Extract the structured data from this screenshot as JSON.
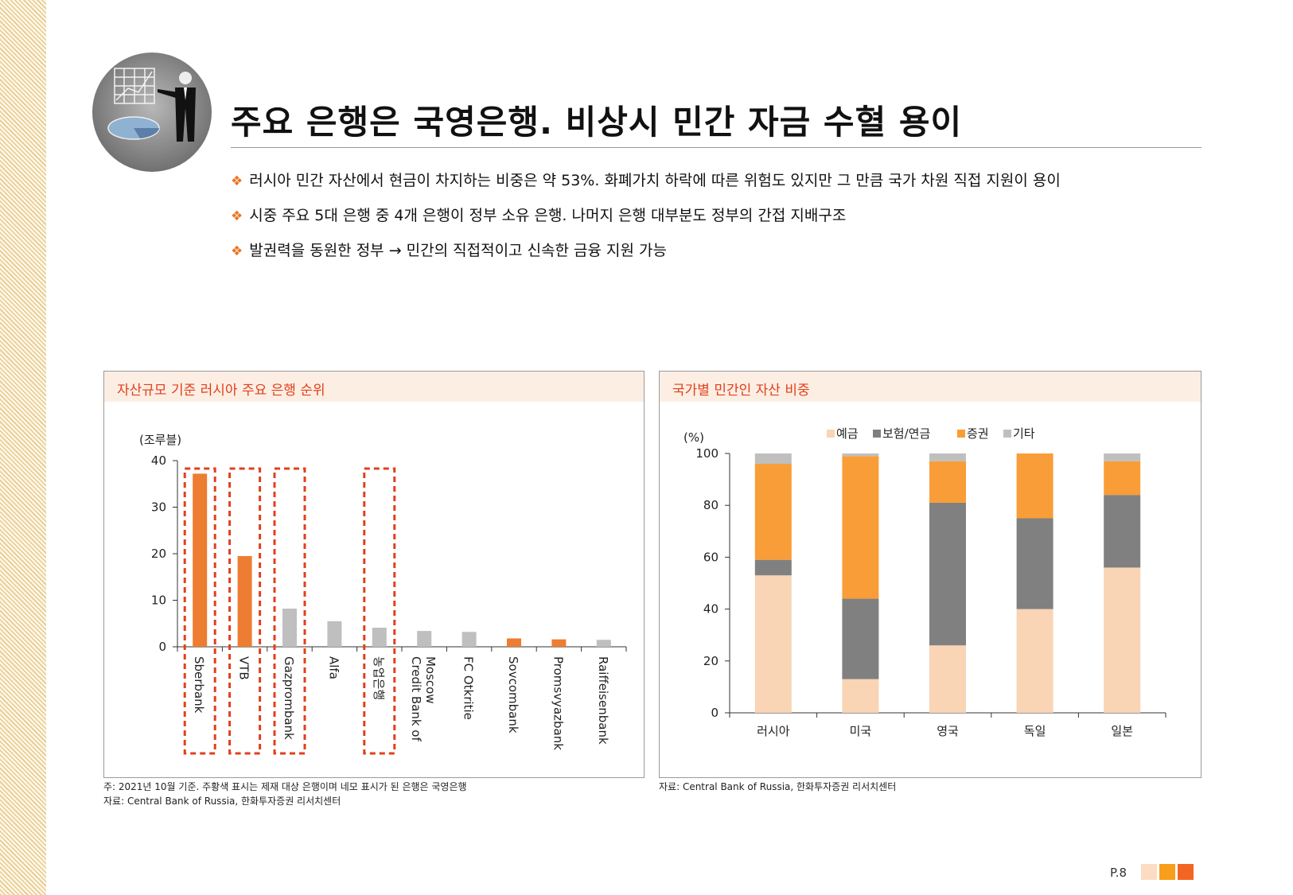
{
  "title": "주요 은행은 국영은행. 비상시 민간 자금 수혈 용이",
  "bullets": [
    "러시아 민간 자산에서 현금이 차지하는 비중은 약 53%. 화폐가치 하락에 따른 위험도 있지만 그 만큼 국가 차원 직접 지원이 용이",
    "시중 주요 5대 은행 중 4개 은행이 정부 소유 은행. 나머지 은행 대부분도 정부의 간접 지배구조",
    "발권력을 동원한 정부 → 민간의 직접적이고 신속한 금융 지원 가능"
  ],
  "bullet_marker": "❖",
  "left_panel": {
    "title": "자산규모 기준 러시아 주요 은행 순위",
    "note1": "주: 2021년 10월 기준. 주황색 표시는 제재 대상 은행이며 네모 표시가 된 은행은 국영은행",
    "note2": "자료: Central Bank of Russia, 한화투자증권 리서치센터"
  },
  "right_panel": {
    "title": "국가별 민간인 자산 비중",
    "note1": "자료: Central Bank of Russia, 한화투자증권 리서치센터"
  },
  "page_number": "P.8",
  "colors": {
    "accent": "#e87722",
    "sanctioned": "#ed7d31",
    "grey_bar": "#bfbfbf",
    "box": "#e0401c",
    "deposit": "#f9d4b5",
    "insurance": "#808080",
    "securities": "#f99d38",
    "other": "#bfbfbf",
    "page_sq": [
      "#fcdcc3",
      "#f99d1c",
      "#f26522"
    ]
  },
  "chart_data": [
    {
      "type": "bar",
      "title": "자산규모 기준 러시아 주요 은행 순위",
      "ylabel": "(조루블)",
      "ylim": [
        0,
        40
      ],
      "yticks": [
        0,
        10,
        20,
        30,
        40
      ],
      "categories": [
        "Sberbank",
        "VTB",
        "Gazprombank",
        "Alfa",
        "농업은행",
        "Credit Bank of Moscow",
        "FC Otkritie",
        "Sovcombank",
        "Promsvyazbank",
        "Raiffeisenbank"
      ],
      "label_lines": [
        [
          "Sberbank"
        ],
        [
          "VTB"
        ],
        [
          "Gazprombank"
        ],
        [
          "Alfa"
        ],
        [
          "농업은행"
        ],
        [
          "Credit Bank of",
          "Moscow"
        ],
        [
          "FC Otkritie"
        ],
        [
          "Sovcombank"
        ],
        [
          "Promsvyazbank"
        ],
        [
          "Raiffeisenbank"
        ]
      ],
      "values": [
        37.2,
        19.5,
        8.2,
        5.5,
        4.1,
        3.4,
        3.2,
        1.8,
        1.6,
        1.5
      ],
      "sanctioned": [
        true,
        true,
        false,
        false,
        false,
        false,
        false,
        true,
        true,
        false
      ],
      "state_owned": [
        true,
        true,
        true,
        false,
        true,
        false,
        false,
        false,
        false,
        false
      ]
    },
    {
      "type": "bar",
      "stacked": true,
      "title": "국가별 민간인 자산 비중",
      "ylabel": "(%)",
      "ylim": [
        0,
        100
      ],
      "yticks": [
        0,
        20,
        40,
        60,
        80,
        100
      ],
      "categories": [
        "러시아",
        "미국",
        "영국",
        "독일",
        "일본"
      ],
      "legend_position": "top",
      "series": [
        {
          "name": "예금",
          "values": [
            53,
            13,
            26,
            40,
            56
          ]
        },
        {
          "name": "보험/연금",
          "values": [
            6,
            31,
            55,
            35,
            28
          ]
        },
        {
          "name": "증권",
          "values": [
            37,
            55,
            16,
            25,
            13
          ]
        },
        {
          "name": "기타",
          "values": [
            4,
            1,
            3,
            0,
            3
          ]
        }
      ]
    }
  ]
}
